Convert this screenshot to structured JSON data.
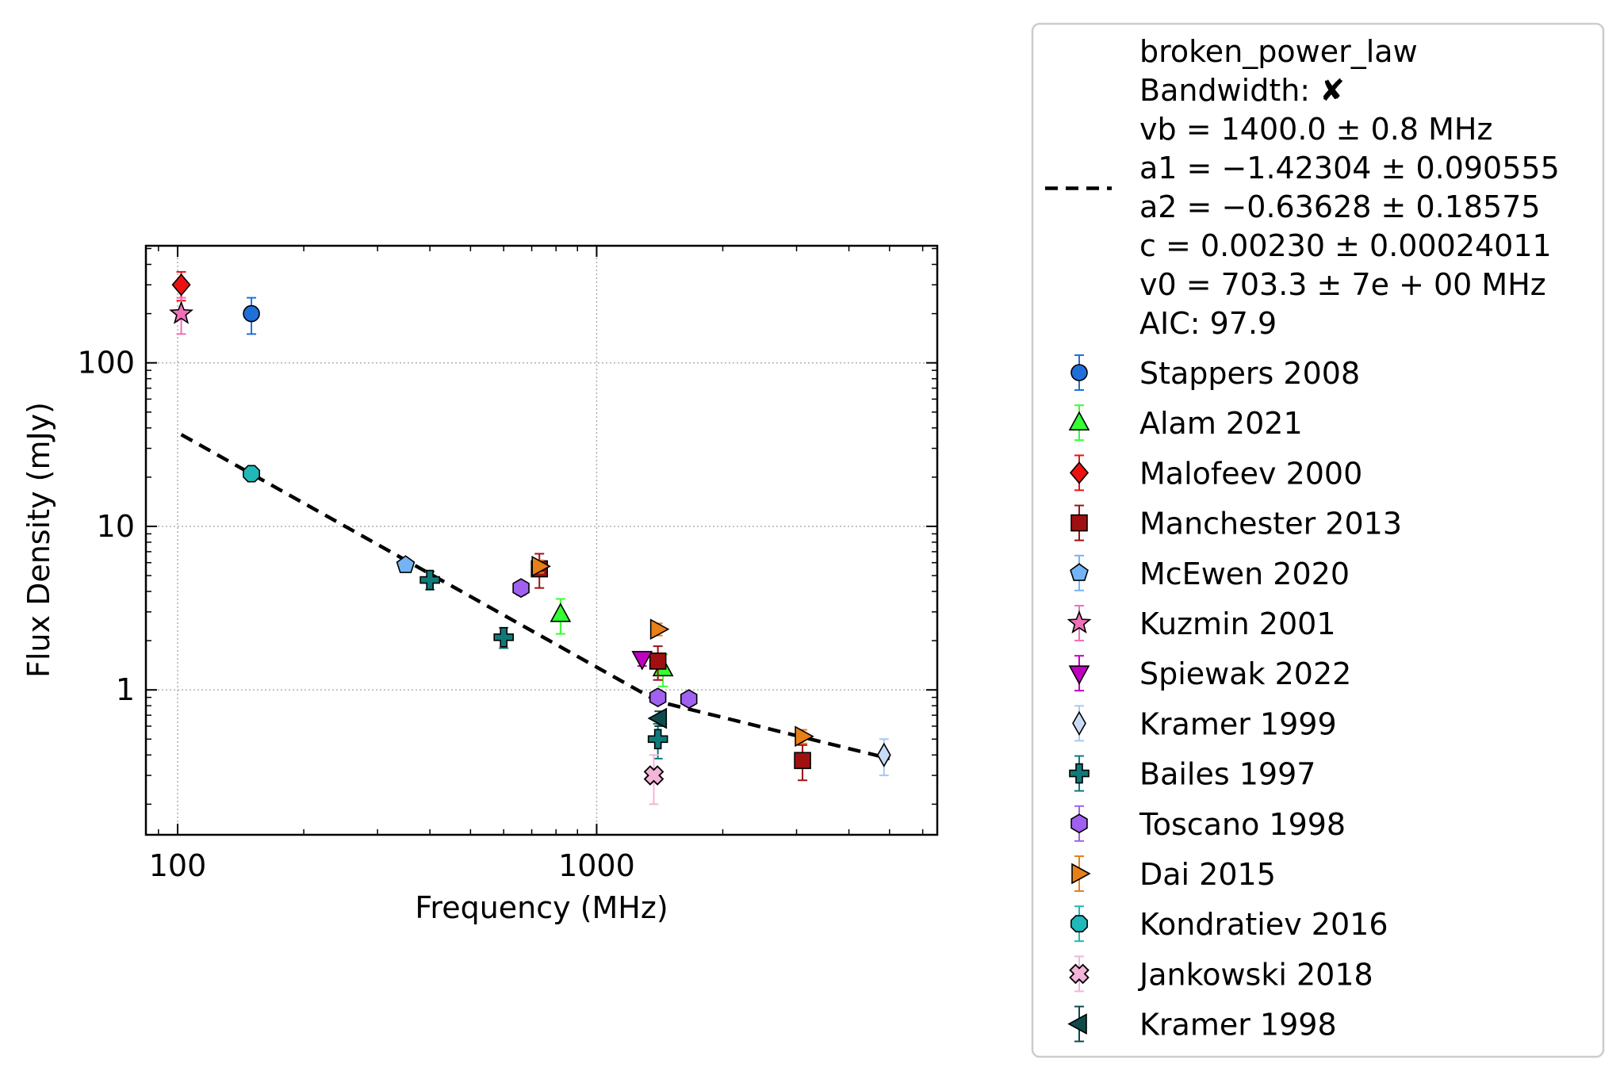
{
  "chart_data": {
    "type": "scatter",
    "title": "",
    "xlabel": "Frequency (MHz)",
    "ylabel": "Flux Density (mJy)",
    "xscale": "log",
    "yscale": "log",
    "xlim": [
      84,
      6500
    ],
    "ylim": [
      0.13,
      520
    ],
    "grid": true,
    "legend_position": "outside-right",
    "x_ticks": [
      {
        "value": 100,
        "label": "100"
      },
      {
        "value": 1000,
        "label": "1000"
      }
    ],
    "y_ticks": [
      {
        "value": 1,
        "label": "1"
      },
      {
        "value": 10,
        "label": "10"
      },
      {
        "value": 100,
        "label": "100"
      }
    ],
    "fit": {
      "name": "broken_power_law",
      "color": "#000000",
      "label_lines": [
        "broken_power_law",
        "Bandwidth: ✘",
        "vb = 1400.0 ± 0.8 MHz",
        "a1 = −1.42304 ± 0.090555",
        "a2 = −0.63628 ± 0.18575",
        "c = 0.00230 ± 0.00024011",
        "v0 = 703.3 ± 7e + 00 MHz",
        "AIC: 97.9"
      ],
      "x": [
        102,
        1400,
        5000
      ],
      "y": [
        36.4,
        0.85,
        0.38
      ]
    },
    "series": [
      {
        "name": "Stappers 2008",
        "marker": "circle",
        "color": "#1f6fdb",
        "errcolor": "#1f6fdb",
        "points": [
          {
            "x": 150,
            "y": 200,
            "lo": 50,
            "hi": 50
          }
        ]
      },
      {
        "name": "Alam 2021",
        "marker": "triangle-up",
        "color": "#33ff33",
        "errcolor": "#33ff33",
        "points": [
          {
            "x": 820,
            "y": 2.9,
            "lo": 0.7,
            "hi": 0.7
          },
          {
            "x": 1440,
            "y": 1.35,
            "lo": 0.3,
            "hi": 0.3
          }
        ]
      },
      {
        "name": "Malofeev 2000",
        "marker": "diamond",
        "color": "#ee1111",
        "errcolor": "#ee1111",
        "points": [
          {
            "x": 102,
            "y": 300,
            "lo": 60,
            "hi": 60
          }
        ]
      },
      {
        "name": "Manchester 2013",
        "marker": "square",
        "color": "#a01010",
        "errcolor": "#a01010",
        "points": [
          {
            "x": 730,
            "y": 5.5,
            "lo": 1.3,
            "hi": 1.3
          },
          {
            "x": 1400,
            "y": 1.5,
            "lo": 0.35,
            "hi": 0.35
          },
          {
            "x": 3100,
            "y": 0.37,
            "lo": 0.09,
            "hi": 0.09
          }
        ]
      },
      {
        "name": "McEwen 2020",
        "marker": "pentagon",
        "color": "#74b4f4",
        "errcolor": "#74b4f4",
        "points": [
          {
            "x": 350,
            "y": 5.8,
            "lo": 0.5,
            "hi": 0.5
          }
        ]
      },
      {
        "name": "Kuzmin 2001",
        "marker": "star",
        "color": "#f070b8",
        "errcolor": "#f070b8",
        "points": [
          {
            "x": 102,
            "y": 200,
            "lo": 50,
            "hi": 50
          }
        ]
      },
      {
        "name": "Spiewak 2022",
        "marker": "triangle-down",
        "color": "#c000c0",
        "errcolor": "#c000c0",
        "points": [
          {
            "x": 1284,
            "y": 1.55,
            "lo": 0.15,
            "hi": 0.15
          }
        ]
      },
      {
        "name": "Kramer 1999",
        "marker": "thin-diamond",
        "color": "#c8dcf8",
        "errcolor": "#a8c8f0",
        "points": [
          {
            "x": 4850,
            "y": 0.4,
            "lo": 0.1,
            "hi": 0.1
          }
        ]
      },
      {
        "name": "Bailes 1997",
        "marker": "plus",
        "color": "#107a7a",
        "errcolor": "#107a7a",
        "points": [
          {
            "x": 400,
            "y": 4.7,
            "lo": 0.6,
            "hi": 0.6
          },
          {
            "x": 600,
            "y": 2.1,
            "lo": 0.3,
            "hi": 0.3
          },
          {
            "x": 1400,
            "y": 0.5,
            "lo": 0.12,
            "hi": 0.12
          }
        ]
      },
      {
        "name": "Toscano 1998",
        "marker": "hexagon",
        "color": "#a060f0",
        "errcolor": "#a060f0",
        "points": [
          {
            "x": 660,
            "y": 4.2,
            "lo": 0.4,
            "hi": 0.4
          },
          {
            "x": 1400,
            "y": 0.9,
            "lo": 0.08,
            "hi": 0.08
          },
          {
            "x": 1660,
            "y": 0.88,
            "lo": 0.08,
            "hi": 0.08
          }
        ]
      },
      {
        "name": "Dai 2015",
        "marker": "triangle-right",
        "color": "#e88018",
        "errcolor": "#e88018",
        "points": [
          {
            "x": 730,
            "y": 5.7,
            "lo": 0.5,
            "hi": 0.5
          },
          {
            "x": 1400,
            "y": 2.35,
            "lo": 0.2,
            "hi": 0.2
          },
          {
            "x": 3100,
            "y": 0.52,
            "lo": 0.05,
            "hi": 0.05
          }
        ]
      },
      {
        "name": "Kondratiev 2016",
        "marker": "octagon",
        "color": "#20b8b8",
        "errcolor": "#20b8b8",
        "points": [
          {
            "x": 150,
            "y": 21,
            "lo": 1.5,
            "hi": 1.5
          }
        ]
      },
      {
        "name": "Jankowski 2018",
        "marker": "x-filled",
        "color": "#f4b4d8",
        "errcolor": "#f4b4d8",
        "points": [
          {
            "x": 1369,
            "y": 0.3,
            "lo": 0.1,
            "hi": 0.1
          }
        ]
      },
      {
        "name": "Kramer 1998",
        "marker": "triangle-left",
        "color": "#0f4a4a",
        "errcolor": "#0f4a4a",
        "points": [
          {
            "x": 1410,
            "y": 0.67,
            "lo": 0.07,
            "hi": 0.07
          }
        ]
      }
    ]
  }
}
